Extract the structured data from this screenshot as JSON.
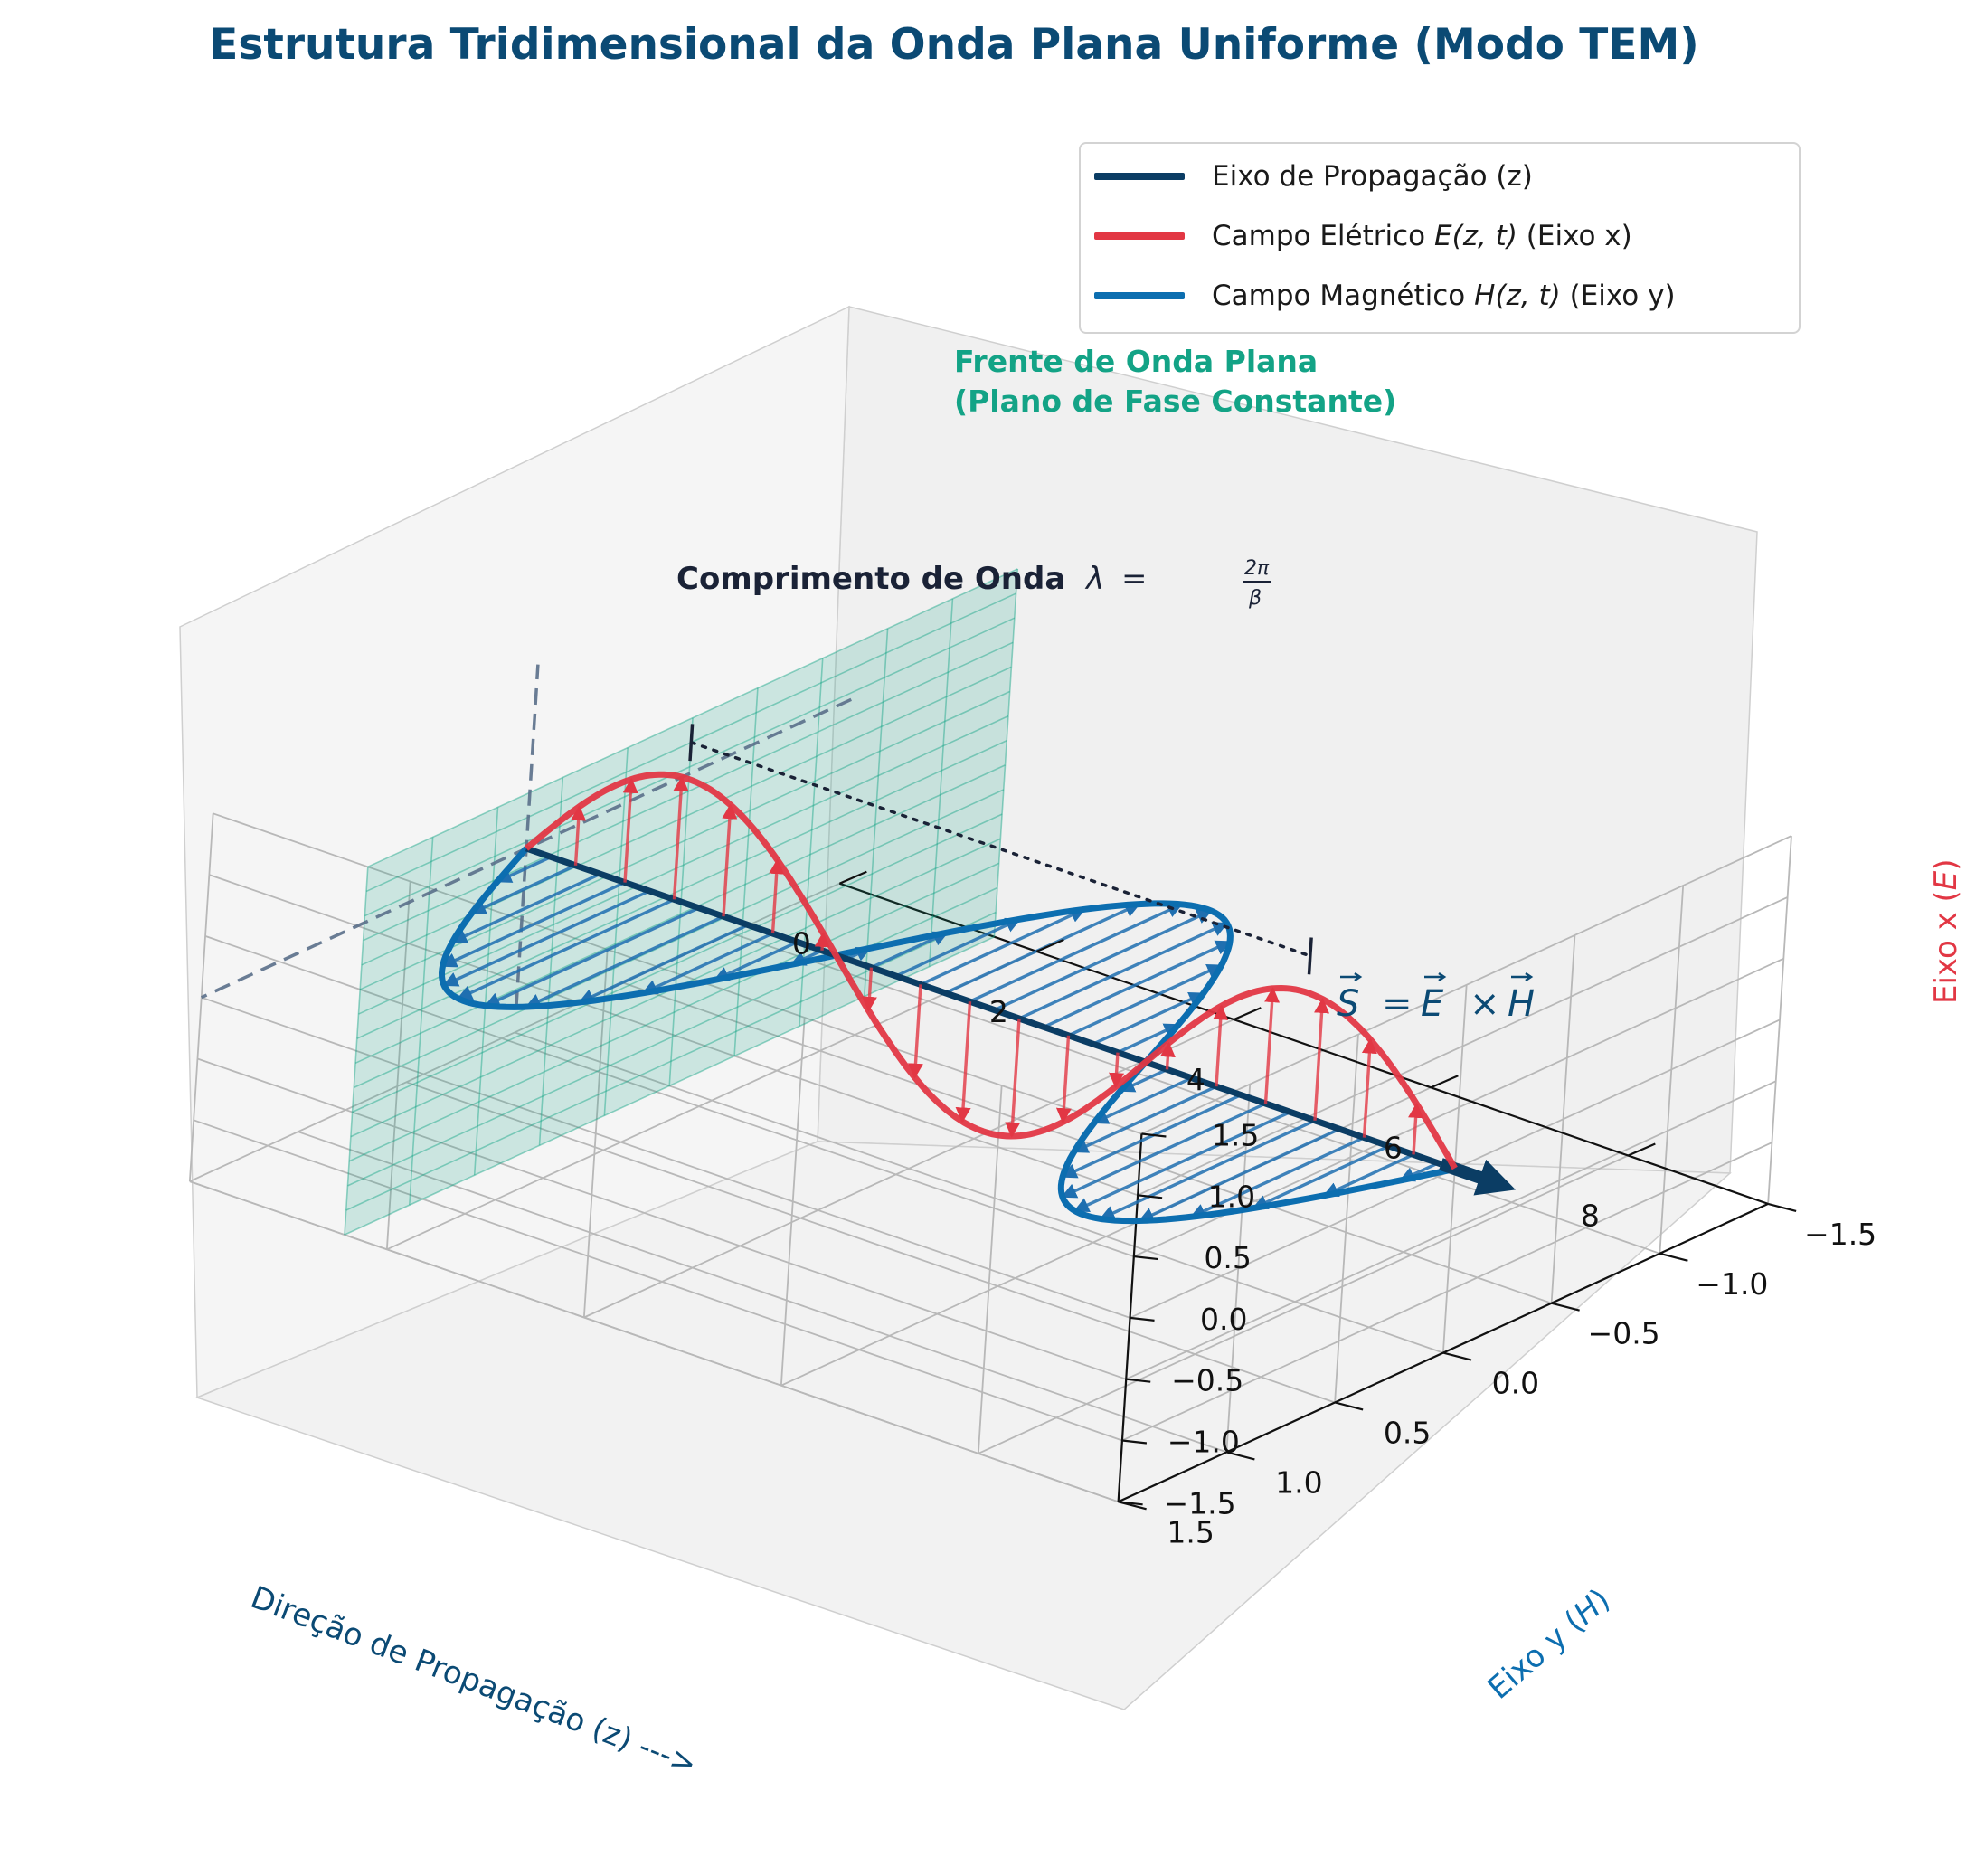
{
  "title": "Estrutura Tridimensional da Onda Plana Uniforme (Modo TEM)",
  "colors": {
    "propagation": "#0b3d64",
    "electric": "#e23744",
    "magnetic": "#0c6eb0",
    "wavefront": "#13a386",
    "wavelength": "#1a2236",
    "title": "#0b4a74"
  },
  "chart_data": {
    "type": "line",
    "projection": "3d",
    "title": "Estrutura Tridimensional da Onda Plana Uniforme (Modo TEM)",
    "xlabel": "Direção de Propagação (z) --->",
    "ylabel": "Eixo y (H⃗)",
    "zlabel": "Eixo x (E⃗)",
    "z_range": [
      0,
      9.42
    ],
    "y_range": [
      -1.5,
      1.5
    ],
    "x_range": [
      -1.5,
      1.5
    ],
    "z_ticks": [
      "0",
      "2",
      "4",
      "6",
      "8"
    ],
    "y_ticks": [
      "−1.5",
      "−1.0",
      "−0.5",
      "0.0",
      "0.5",
      "1.0",
      "1.5"
    ],
    "x_ticks": [
      "−1.5",
      "−1.0",
      "−0.5",
      "0.0",
      "0.5",
      "1.0",
      "1.5"
    ],
    "grid": true,
    "legend_position": "top-right",
    "series": [
      {
        "name": "Eixo de Propagação (z)",
        "kind": "axis line",
        "z": [
          0,
          9.42
        ]
      },
      {
        "name": "Campo Elétrico E⃗(z,t) (Eixo x)",
        "kind": "E-field",
        "amplitude": 1.0,
        "function": "sin(z)",
        "z_range": [
          0,
          9.42
        ],
        "arrows_every": 0.5
      },
      {
        "name": "Campo Magnético H⃗(z,t) (Eixo y)",
        "kind": "H-field",
        "amplitude": 1.0,
        "function": "sin(z)",
        "z_range": [
          0,
          9.42
        ],
        "arrows_every": 0.25
      }
    ],
    "wavefront_plane": {
      "z": 1.57,
      "x_range": [
        -1.5,
        1.5
      ],
      "y_range": [
        -1.5,
        1.5
      ]
    },
    "annotations": [
      {
        "text": "Frente de Onda Plana\n(Plano de Fase Constante)"
      },
      {
        "text": "Comprimento de Onda λ = 2π/β",
        "from_z": 1.57,
        "to_z": 7.85
      },
      {
        "text": "S⃗ = E⃗ × H⃗"
      }
    ]
  },
  "legend": [
    {
      "label_pre": "Eixo de Propagação (z)",
      "sym": "",
      "label_post": ""
    },
    {
      "label_pre": "Campo Elétrico ",
      "sym": "E",
      "label_post": " (Eixo x)"
    },
    {
      "label_pre": "Campo Magnético ",
      "sym": "H",
      "label_post": " (Eixo y)"
    }
  ],
  "labels": {
    "wavefront_line1": "Frente de Onda Plana",
    "wavefront_line2": "(Plano de Fase Constante)",
    "wavelength_bold": "Comprimento de Onda",
    "lambda": "λ",
    "eq": "=",
    "two_pi": "2π",
    "beta": "β",
    "poynting_S": "S",
    "poynting_E": "E",
    "poynting_H": "H",
    "eq_sign": "=",
    "times": "×",
    "xaxis_label": "Direção de Propagação (z) --->",
    "yaxis_label_pre": "Eixo y (",
    "yaxis_sym": "H",
    "yaxis_label_post": ")",
    "zaxis_label_pre": "Eixo x (",
    "zaxis_sym": "E",
    "zaxis_label_post": ")",
    "arg": "(z, t)"
  }
}
